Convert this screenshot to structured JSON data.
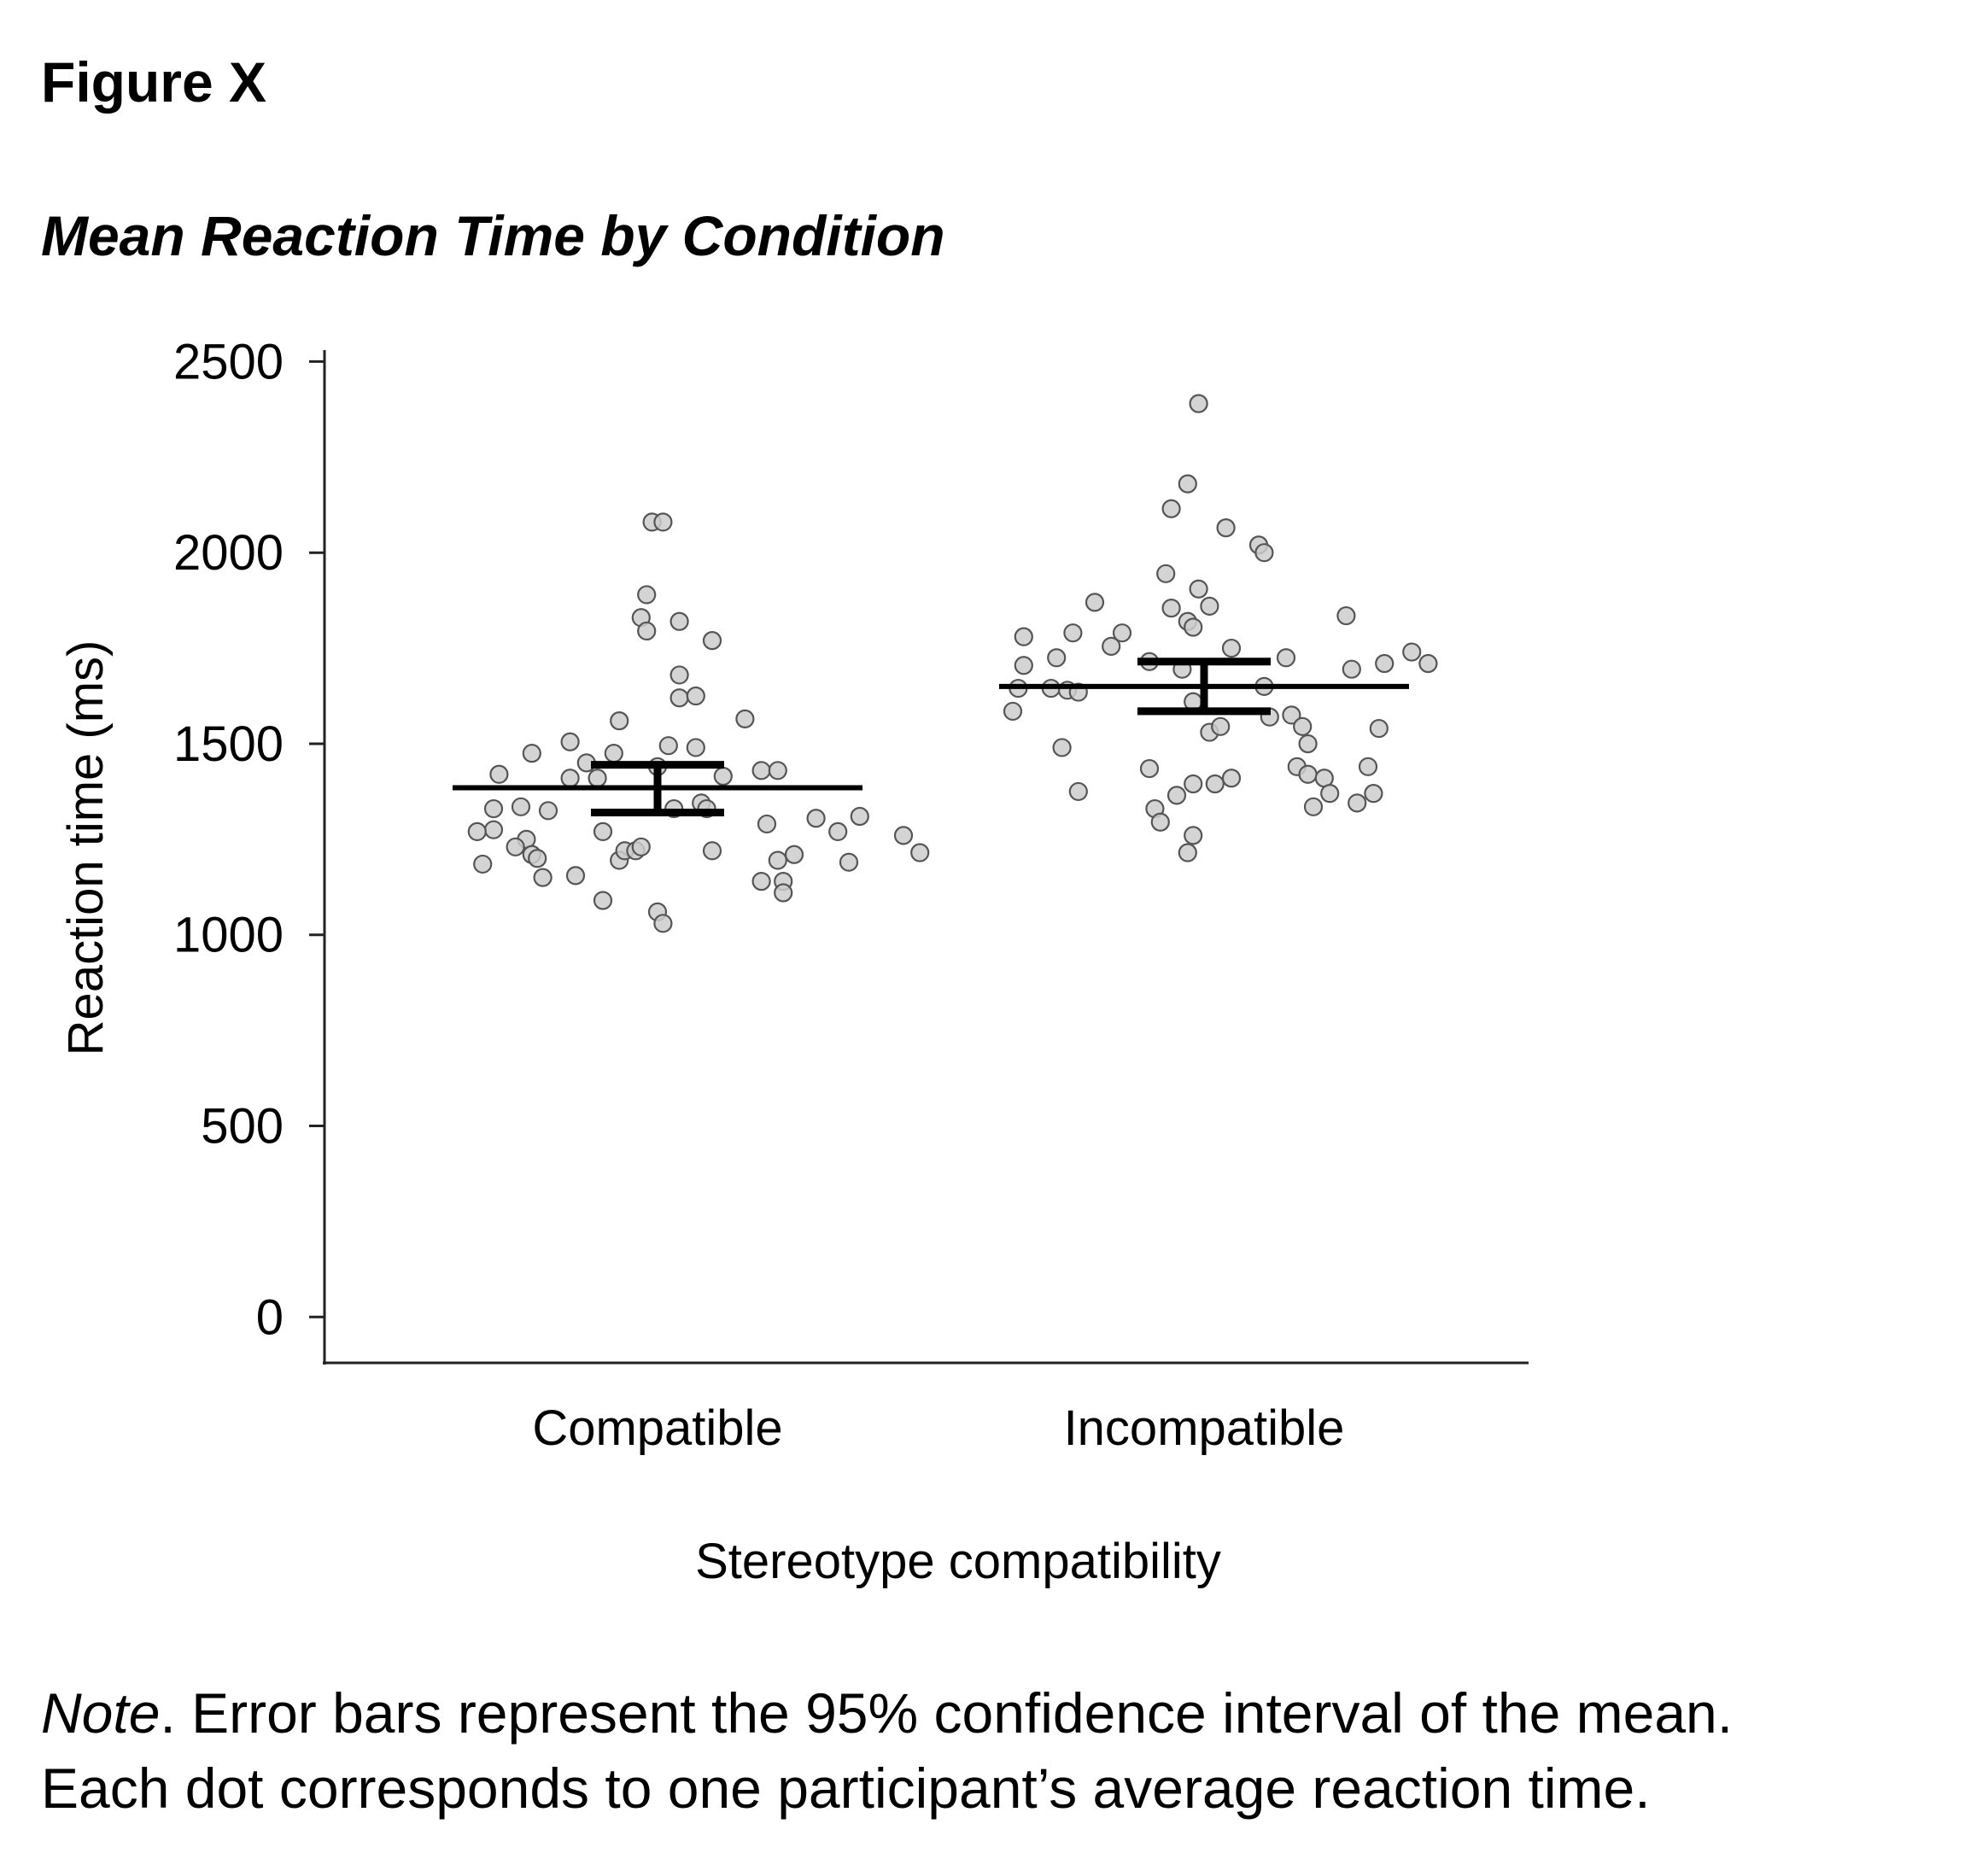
{
  "figure_label": "Figure X",
  "figure_title": "Mean Reaction Time by Condition",
  "chart_data": {
    "type": "scatter",
    "title": "Mean Reaction Time by Condition",
    "xlabel": "Stereotype compatibility",
    "ylabel": "Reaction time (ms)",
    "ylim": [
      -120,
      2530
    ],
    "yticks": [
      0,
      500,
      1000,
      1500,
      2000,
      2500
    ],
    "categories": [
      "Compatible",
      "Incompatible"
    ],
    "grid": false,
    "legend": "none",
    "series": [
      {
        "category": "Compatible",
        "mean": 1385,
        "ci_low": 1320,
        "ci_high": 1445,
        "points": [
          [
            -0.29,
            1420
          ],
          [
            -0.3,
            1330
          ],
          [
            -0.25,
            1335
          ],
          [
            -0.3,
            1275
          ],
          [
            -0.33,
            1270
          ],
          [
            -0.32,
            1185
          ],
          [
            -0.24,
            1250
          ],
          [
            -0.26,
            1230
          ],
          [
            -0.23,
            1210
          ],
          [
            -0.22,
            1200
          ],
          [
            -0.21,
            1150
          ],
          [
            -0.2,
            1325
          ],
          [
            -0.23,
            1475
          ],
          [
            -0.16,
            1505
          ],
          [
            -0.15,
            1155
          ],
          [
            -0.16,
            1410
          ],
          [
            -0.13,
            1450
          ],
          [
            -0.11,
            1410
          ],
          [
            -0.1,
            1090
          ],
          [
            -0.1,
            1270
          ],
          [
            -0.08,
            1475
          ],
          [
            -0.07,
            1195
          ],
          [
            -0.06,
            1220
          ],
          [
            -0.07,
            1560
          ],
          [
            -0.04,
            1220
          ],
          [
            -0.03,
            1230
          ],
          [
            -0.02,
            1890
          ],
          [
            -0.03,
            1830
          ],
          [
            -0.02,
            1795
          ],
          [
            -0.01,
            2080
          ],
          [
            0.01,
            2080
          ],
          [
            0.0,
            1440
          ],
          [
            0.0,
            1060
          ],
          [
            0.01,
            1030
          ],
          [
            0.02,
            1495
          ],
          [
            0.03,
            1330
          ],
          [
            0.04,
            1680
          ],
          [
            0.04,
            1620
          ],
          [
            0.04,
            1820
          ],
          [
            0.07,
            1625
          ],
          [
            0.07,
            1490
          ],
          [
            0.08,
            1345
          ],
          [
            0.09,
            1330
          ],
          [
            0.1,
            1770
          ],
          [
            0.1,
            1220
          ],
          [
            0.12,
            1415
          ],
          [
            0.16,
            1565
          ],
          [
            0.19,
            1430
          ],
          [
            0.2,
            1290
          ],
          [
            0.19,
            1140
          ],
          [
            0.22,
            1195
          ],
          [
            0.22,
            1430
          ],
          [
            0.23,
            1140
          ],
          [
            0.23,
            1110
          ],
          [
            0.25,
            1210
          ],
          [
            0.29,
            1305
          ],
          [
            0.33,
            1270
          ],
          [
            0.35,
            1190
          ],
          [
            0.37,
            1310
          ],
          [
            0.45,
            1260
          ],
          [
            0.48,
            1215
          ]
        ]
      },
      {
        "category": "Incompatible",
        "mean": 1650,
        "ci_low": 1585,
        "ci_high": 1715,
        "points": [
          [
            -0.35,
            1585
          ],
          [
            -0.34,
            1645
          ],
          [
            -0.33,
            1705
          ],
          [
            -0.33,
            1780
          ],
          [
            -0.28,
            1645
          ],
          [
            -0.27,
            1725
          ],
          [
            -0.26,
            1490
          ],
          [
            -0.25,
            1640
          ],
          [
            -0.24,
            1790
          ],
          [
            -0.23,
            1635
          ],
          [
            -0.23,
            1375
          ],
          [
            -0.2,
            1870
          ],
          [
            -0.17,
            1755
          ],
          [
            -0.15,
            1790
          ],
          [
            -0.1,
            1715
          ],
          [
            -0.1,
            1435
          ],
          [
            -0.09,
            1330
          ],
          [
            -0.08,
            1295
          ],
          [
            -0.07,
            1945
          ],
          [
            -0.06,
            1855
          ],
          [
            -0.06,
            2115
          ],
          [
            -0.05,
            1365
          ],
          [
            -0.04,
            1695
          ],
          [
            -0.03,
            1820
          ],
          [
            -0.03,
            2180
          ],
          [
            -0.03,
            1215
          ],
          [
            -0.02,
            1805
          ],
          [
            -0.02,
            1260
          ],
          [
            -0.02,
            1610
          ],
          [
            -0.02,
            1395
          ],
          [
            -0.01,
            1905
          ],
          [
            -0.01,
            2390
          ],
          [
            0.01,
            1860
          ],
          [
            0.01,
            1530
          ],
          [
            0.02,
            1395
          ],
          [
            0.03,
            1545
          ],
          [
            0.04,
            2065
          ],
          [
            0.05,
            1750
          ],
          [
            0.05,
            1410
          ],
          [
            0.1,
            2020
          ],
          [
            0.11,
            2000
          ],
          [
            0.11,
            1650
          ],
          [
            0.12,
            1570
          ],
          [
            0.15,
            1725
          ],
          [
            0.16,
            1575
          ],
          [
            0.17,
            1440
          ],
          [
            0.18,
            1545
          ],
          [
            0.19,
            1500
          ],
          [
            0.19,
            1420
          ],
          [
            0.2,
            1335
          ],
          [
            0.22,
            1410
          ],
          [
            0.23,
            1370
          ],
          [
            0.26,
            1835
          ],
          [
            0.27,
            1695
          ],
          [
            0.28,
            1345
          ],
          [
            0.3,
            1440
          ],
          [
            0.31,
            1370
          ],
          [
            0.32,
            1540
          ],
          [
            0.33,
            1710
          ],
          [
            0.38,
            1740
          ],
          [
            0.41,
            1710
          ]
        ]
      }
    ]
  },
  "note": {
    "label": "Note",
    "line1_rest": ". Error bars represent the 95% confidence interval of the mean.",
    "line2": "Each dot corresponds to one participant’s average reaction time."
  }
}
